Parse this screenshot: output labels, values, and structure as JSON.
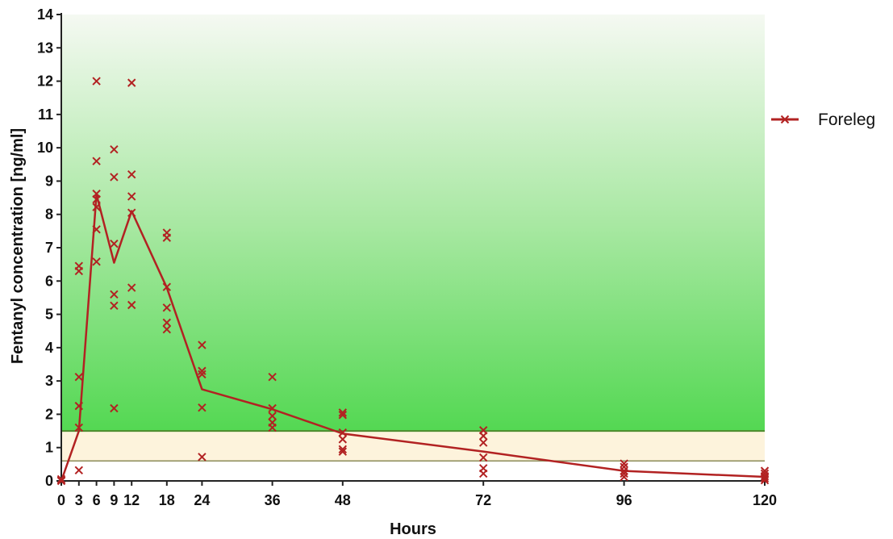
{
  "chart_data": {
    "type": "line",
    "xlabel": "Hours",
    "ylabel": "Fentanyl concentration [ng/ml]",
    "xlim": [
      0,
      120
    ],
    "ylim": [
      0,
      14
    ],
    "x_ticks": [
      0,
      3,
      6,
      9,
      12,
      18,
      24,
      36,
      48,
      72,
      96,
      120
    ],
    "y_ticks": [
      0,
      1,
      2,
      3,
      4,
      5,
      6,
      7,
      8,
      9,
      10,
      11,
      12,
      13,
      14
    ],
    "grid": false,
    "legend_position": "right",
    "colors": {
      "series": "#b22222",
      "band_upper_line": "#4e8a2e",
      "band_lower_line": "#8c8c5a",
      "band_fill": "#fdf3dc",
      "background_top": "#f5f9f2",
      "background_bottom": "#3fd43f"
    },
    "therapeutic_band": [
      0.6,
      1.5
    ],
    "series": [
      {
        "name": "Foreleg",
        "marker": "x",
        "mean": {
          "x": [
            0,
            3,
            6,
            9,
            12,
            18,
            24,
            36,
            48,
            72,
            96,
            120
          ],
          "y": [
            0,
            1.5,
            8.6,
            6.55,
            8.1,
            5.8,
            2.75,
            2.15,
            1.42,
            0.88,
            0.3,
            0.12
          ]
        },
        "points": [
          [
            0,
            0
          ],
          [
            0,
            0.02
          ],
          [
            0,
            0.05
          ],
          [
            3,
            0.32
          ],
          [
            3,
            1.6
          ],
          [
            3,
            2.25
          ],
          [
            3,
            3.12
          ],
          [
            3,
            6.3
          ],
          [
            3,
            6.45
          ],
          [
            6,
            6.58
          ],
          [
            6,
            7.55
          ],
          [
            6,
            8.22
          ],
          [
            6,
            8.45
          ],
          [
            6,
            8.62
          ],
          [
            6,
            9.6
          ],
          [
            6,
            12.0
          ],
          [
            9,
            2.18
          ],
          [
            9,
            5.26
          ],
          [
            9,
            5.6
          ],
          [
            9,
            7.12
          ],
          [
            9,
            9.12
          ],
          [
            9,
            9.95
          ],
          [
            12,
            5.28
          ],
          [
            12,
            5.8
          ],
          [
            12,
            8.05
          ],
          [
            12,
            8.54
          ],
          [
            12,
            9.2
          ],
          [
            12,
            11.95
          ],
          [
            18,
            4.55
          ],
          [
            18,
            4.75
          ],
          [
            18,
            5.2
          ],
          [
            18,
            5.82
          ],
          [
            18,
            7.3
          ],
          [
            18,
            7.45
          ],
          [
            24,
            0.72
          ],
          [
            24,
            2.2
          ],
          [
            24,
            3.2
          ],
          [
            24,
            3.3
          ],
          [
            24,
            4.08
          ],
          [
            36,
            1.6
          ],
          [
            36,
            1.75
          ],
          [
            36,
            1.95
          ],
          [
            36,
            2.18
          ],
          [
            36,
            3.12
          ],
          [
            48,
            0.88
          ],
          [
            48,
            0.95
          ],
          [
            48,
            1.25
          ],
          [
            48,
            1.45
          ],
          [
            48,
            1.98
          ],
          [
            48,
            2.05
          ],
          [
            72,
            0.22
          ],
          [
            72,
            0.38
          ],
          [
            72,
            0.7
          ],
          [
            72,
            1.15
          ],
          [
            72,
            1.35
          ],
          [
            72,
            1.52
          ],
          [
            96,
            0.12
          ],
          [
            96,
            0.22
          ],
          [
            96,
            0.3
          ],
          [
            96,
            0.42
          ],
          [
            96,
            0.52
          ],
          [
            120,
            0.02
          ],
          [
            120,
            0.08
          ],
          [
            120,
            0.14
          ],
          [
            120,
            0.22
          ],
          [
            120,
            0.3
          ]
        ]
      }
    ]
  }
}
